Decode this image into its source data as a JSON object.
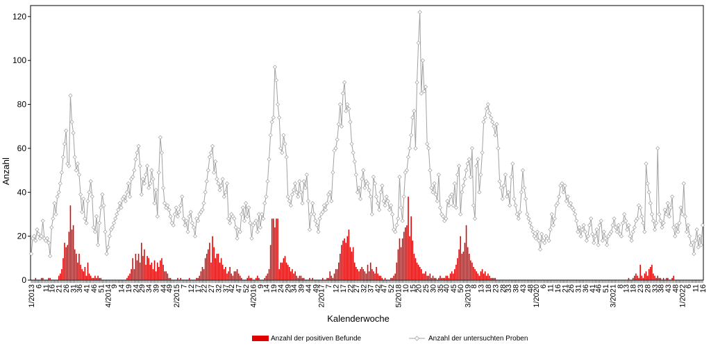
{
  "chart_data": {
    "type": "bar+line",
    "title": "",
    "xlabel": "Kalenderwoche",
    "ylabel": "Anzahl",
    "ylim": [
      0,
      125
    ],
    "y_ticks": [
      0,
      20,
      40,
      60,
      80,
      100,
      120
    ],
    "grid": false,
    "legend_position": "bottom",
    "x_tick_labels": [
      "1/2013",
      "6",
      "11",
      "16",
      "21",
      "26",
      "31",
      "36",
      "41",
      "46",
      "51",
      "4/2014",
      "9",
      "14",
      "19",
      "24",
      "29",
      "34",
      "39",
      "44",
      "49",
      "2/2015",
      "7",
      "12",
      "17",
      "22",
      "27",
      "32",
      "37",
      "42",
      "47",
      "52",
      "4/2016",
      "9",
      "14",
      "19",
      "24",
      "29",
      "34",
      "39",
      "44",
      "49",
      "2/2017",
      "7",
      "12",
      "17",
      "22",
      "27",
      "32",
      "37",
      "42",
      "47",
      "52",
      "5/2018",
      "10",
      "15",
      "20",
      "25",
      "30",
      "35",
      "40",
      "45",
      "50",
      "3/2019",
      "8",
      "13",
      "18",
      "23",
      "28",
      "33",
      "38",
      "43",
      "48",
      "1/2020",
      "6",
      "11",
      "16",
      "21",
      "26",
      "31",
      "36",
      "41",
      "46",
      "51",
      "3/2021",
      "8",
      "13",
      "18",
      "23",
      "28",
      "33",
      "38",
      "43",
      "48",
      "1/2022",
      "6",
      "11",
      "16"
    ],
    "series": [
      {
        "name": "Anzahl der positiven Befunde",
        "kind": "bar",
        "color": "#e00000",
        "values": [
          0,
          0,
          0,
          1,
          0,
          0,
          0,
          1,
          1,
          0,
          0,
          0,
          1,
          1,
          0,
          0,
          0,
          0,
          0,
          2,
          3,
          5,
          10,
          17,
          15,
          16,
          22,
          34,
          23,
          25,
          14,
          12,
          8,
          12,
          7,
          5,
          4,
          6,
          2,
          8,
          3,
          2,
          1,
          1,
          2,
          1,
          2,
          1,
          1,
          0,
          0,
          0,
          0,
          0,
          0,
          0,
          0,
          0,
          0,
          0,
          0,
          0,
          0,
          0,
          0,
          0,
          1,
          2,
          3,
          5,
          10,
          5,
          12,
          9,
          12,
          8,
          17,
          11,
          14,
          7,
          11,
          10,
          7,
          8,
          5,
          9,
          4,
          8,
          6,
          9,
          10,
          7,
          4,
          4,
          3,
          1,
          1,
          0,
          0,
          0,
          0,
          1,
          0,
          1,
          0,
          0,
          0,
          0,
          0,
          1,
          0,
          0,
          0,
          0,
          1,
          1,
          2,
          4,
          6,
          5,
          10,
          12,
          14,
          17,
          8,
          20,
          15,
          10,
          12,
          12,
          8,
          10,
          7,
          5,
          6,
          3,
          4,
          6,
          3,
          2,
          4,
          4,
          5,
          3,
          2,
          1,
          0,
          0,
          0,
          1,
          2,
          1,
          1,
          0,
          0,
          1,
          2,
          1,
          0,
          0,
          0,
          1,
          2,
          3,
          5,
          16,
          28,
          28,
          24,
          28,
          28,
          5,
          8,
          8,
          10,
          11,
          8,
          7,
          6,
          4,
          5,
          3,
          4,
          2,
          1,
          2,
          2,
          1,
          1,
          0,
          0,
          0,
          1,
          0,
          1,
          0,
          0,
          0,
          0,
          0,
          0,
          1,
          0,
          0,
          1,
          1,
          4,
          2,
          1,
          3,
          5,
          5,
          8,
          12,
          16,
          18,
          19,
          17,
          20,
          23,
          15,
          13,
          15,
          8,
          6,
          5,
          4,
          5,
          6,
          5,
          4,
          3,
          7,
          4,
          8,
          5,
          4,
          3,
          6,
          3,
          2,
          2,
          1,
          0,
          1,
          0,
          0,
          0,
          1,
          1,
          2,
          3,
          8,
          14,
          19,
          15,
          19,
          22,
          24,
          25,
          38,
          20,
          29,
          18,
          12,
          10,
          8,
          7,
          6,
          5,
          3,
          3,
          4,
          2,
          2,
          3,
          1,
          2,
          1,
          1,
          0,
          1,
          2,
          1,
          1,
          1,
          2,
          2,
          1,
          3,
          4,
          3,
          5,
          7,
          10,
          14,
          20,
          12,
          13,
          17,
          25,
          15,
          12,
          9,
          8,
          6,
          5,
          4,
          3,
          2,
          4,
          5,
          3,
          4,
          2,
          3,
          2,
          1,
          1,
          1,
          1,
          0,
          0,
          0,
          0,
          0,
          0,
          0,
          0,
          0,
          0,
          0,
          0,
          0,
          0,
          0,
          0,
          0,
          0,
          0,
          0,
          0,
          0,
          0,
          0,
          0,
          0,
          0,
          0,
          0,
          0,
          0,
          0,
          0,
          0,
          0,
          0,
          0,
          0,
          0,
          0,
          0,
          0,
          0,
          0,
          0,
          0,
          0,
          0,
          0,
          0,
          0,
          0,
          0,
          0,
          0,
          0,
          0,
          0,
          0,
          0,
          0,
          0,
          0,
          0,
          0,
          0,
          0,
          0,
          0,
          0,
          0,
          0,
          0,
          0,
          0,
          0,
          0,
          0,
          0,
          0,
          0,
          0,
          0,
          0,
          0,
          0,
          0,
          0,
          0,
          0,
          0,
          1,
          0,
          0,
          1,
          2,
          3,
          2,
          1,
          7,
          2,
          1,
          3,
          4,
          2,
          5,
          6,
          7,
          3,
          2,
          1,
          2,
          1,
          1,
          0,
          1,
          0,
          1,
          1,
          0,
          0,
          1,
          2
        ]
      },
      {
        "name": "Anzahl der untersuchten Proben",
        "kind": "line",
        "color": "#a0a0a0",
        "values": [
          12,
          19,
          20,
          18,
          23,
          21,
          19,
          20,
          27,
          19,
          18,
          19,
          17,
          11,
          24,
          28,
          35,
          30,
          38,
          40,
          44,
          49,
          56,
          62,
          68,
          53,
          52,
          84,
          72,
          67,
          56,
          50,
          53,
          48,
          39,
          31,
          37,
          28,
          26,
          36,
          40,
          45,
          38,
          24,
          22,
          29,
          16,
          26,
          33,
          39,
          34,
          22,
          12,
          15,
          20,
          23,
          24,
          26,
          28,
          30,
          32,
          35,
          33,
          37,
          38,
          36,
          40,
          44,
          38,
          46,
          47,
          50,
          55,
          58,
          61,
          52,
          39,
          46,
          44,
          48,
          52,
          42,
          44,
          50,
          46,
          35,
          41,
          29,
          49,
          65,
          58,
          42,
          35,
          33,
          34,
          32,
          29,
          26,
          25,
          30,
          33,
          29,
          31,
          34,
          38,
          28,
          25,
          27,
          22,
          29,
          31,
          26,
          24,
          20,
          28,
          27,
          30,
          31,
          32,
          35,
          40,
          45,
          50,
          56,
          58,
          61,
          49,
          54,
          46,
          44,
          41,
          43,
          46,
          38,
          40,
          44,
          28,
          26,
          30,
          29,
          28,
          24,
          19,
          23,
          22,
          30,
          33,
          27,
          35,
          29,
          33,
          26,
          19,
          25,
          26,
          27,
          22,
          30,
          24,
          30,
          28,
          35,
          38,
          45,
          55,
          66,
          72,
          74,
          97,
          91,
          80,
          74,
          60,
          58,
          66,
          62,
          56,
          38,
          36,
          34,
          39,
          41,
          44,
          40,
          38,
          45,
          40,
          35,
          45,
          42,
          48,
          36,
          23,
          30,
          35,
          30,
          27,
          25,
          22,
          28,
          30,
          31,
          34,
          32,
          35,
          39,
          40,
          36,
          49,
          59,
          60,
          64,
          71,
          80,
          70,
          85,
          90,
          77,
          80,
          78,
          72,
          62,
          58,
          54,
          48,
          40,
          42,
          37,
          46,
          50,
          42,
          45,
          44,
          41,
          38,
          30,
          47,
          44,
          38,
          35,
          32,
          40,
          43,
          36,
          34,
          38,
          36,
          32,
          34,
          30,
          23,
          22,
          25,
          28,
          47,
          33,
          27,
          38,
          49,
          50,
          56,
          60,
          66,
          74,
          77,
          60,
          90,
          108,
          122,
          85,
          100,
          86,
          88,
          62,
          60,
          50,
          42,
          40,
          44,
          39,
          36,
          48,
          33,
          30,
          29,
          27,
          28,
          36,
          34,
          38,
          39,
          34,
          44,
          33,
          48,
          52,
          30,
          40,
          43,
          46,
          50,
          53,
          55,
          47,
          60,
          34,
          28,
          52,
          55,
          40,
          48,
          58,
          72,
          74,
          78,
          80,
          76,
          74,
          72,
          70,
          66,
          71,
          60,
          45,
          42,
          37,
          43,
          48,
          38,
          40,
          34,
          47,
          53,
          37,
          34,
          30,
          28,
          31,
          40,
          50,
          42,
          37,
          30,
          28,
          26,
          24,
          22,
          20,
          19,
          22,
          18,
          14,
          21,
          18,
          17,
          20,
          19,
          18,
          23,
          30,
          25,
          28,
          34,
          35,
          38,
          43,
          44,
          40,
          43,
          36,
          38,
          34,
          35,
          33,
          32,
          30,
          27,
          22,
          24,
          20,
          23,
          25,
          22,
          18,
          20,
          25,
          28,
          21,
          17,
          20,
          23,
          16,
          25,
          27,
          18,
          22,
          19,
          16,
          20,
          21,
          22,
          25,
          28,
          24,
          22,
          25,
          21,
          20,
          26,
          30,
          27,
          23,
          25,
          20,
          18,
          22,
          24,
          27,
          28,
          34,
          33,
          29,
          26,
          22,
          53,
          44,
          40,
          35,
          30,
          27,
          23,
          26,
          60,
          30,
          27,
          24,
          26,
          32,
          30,
          35,
          29,
          33,
          38,
          24,
          20,
          25,
          22,
          26,
          33,
          30,
          44,
          29,
          22,
          25,
          20,
          16,
          17,
          12,
          18,
          23,
          15,
          20,
          16,
          25
        ]
      }
    ]
  }
}
